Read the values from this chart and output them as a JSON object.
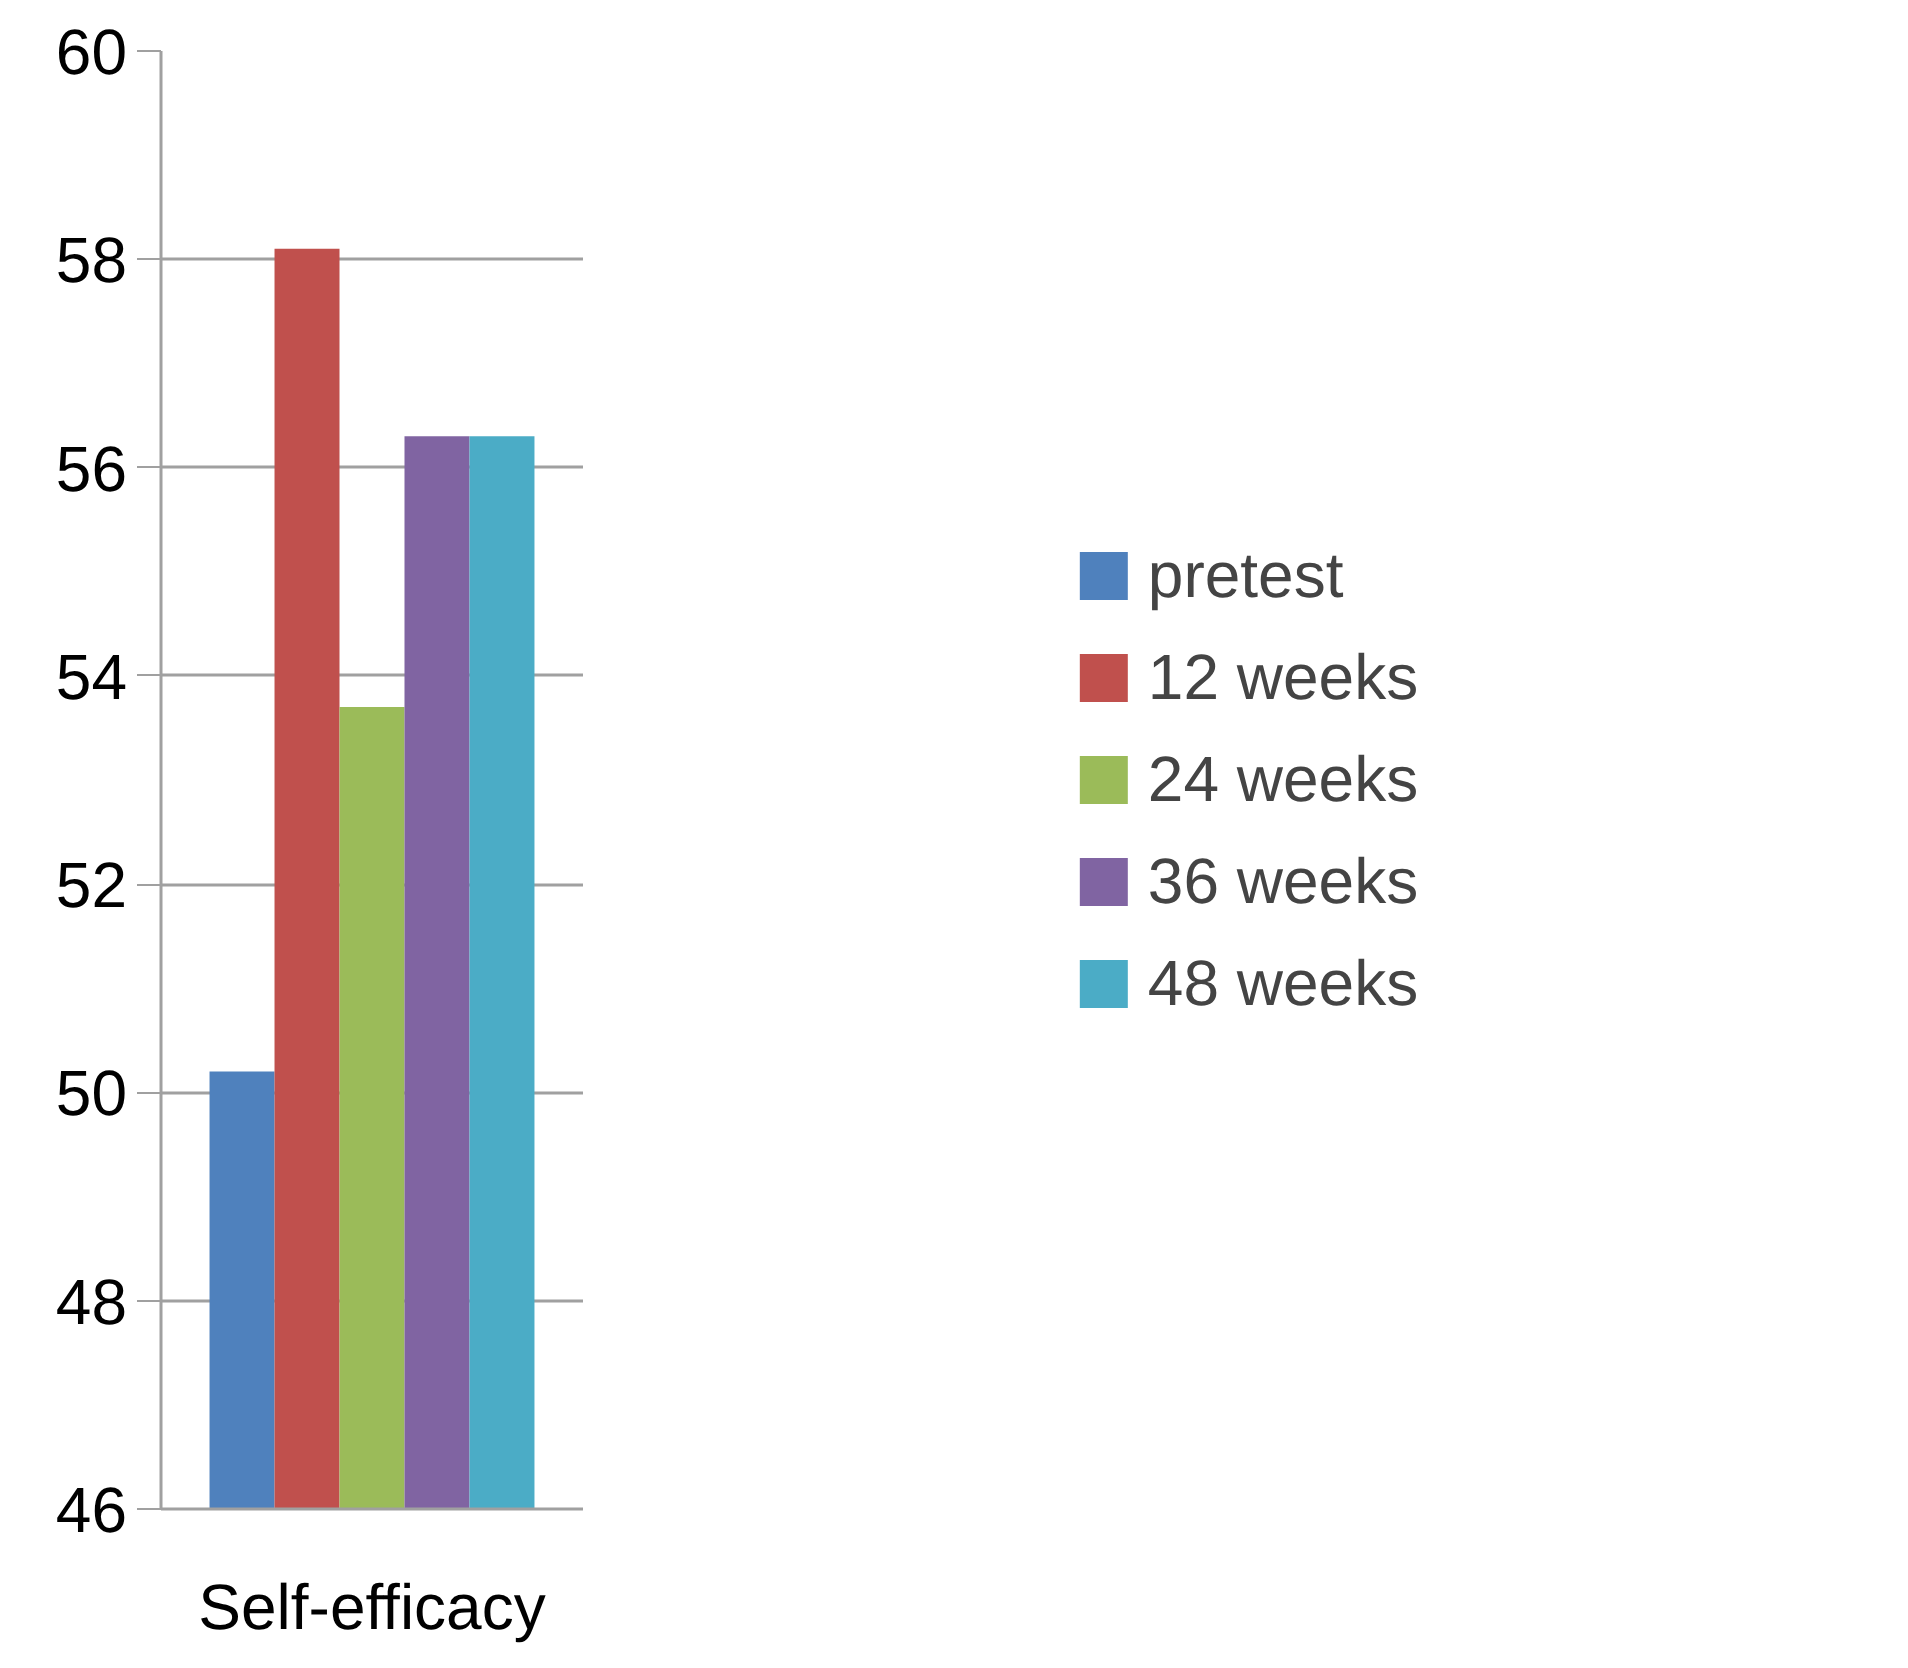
{
  "chart_data": {
    "type": "bar",
    "categories": [
      "Self-efficacy"
    ],
    "series": [
      {
        "name": "pretest",
        "color": "#4f81bd",
        "values": [
          50.2
        ]
      },
      {
        "name": "12 weeks",
        "color": "#c0504d",
        "values": [
          58.1
        ]
      },
      {
        "name": "24 weeks",
        "color": "#9bbb59",
        "values": [
          53.7
        ]
      },
      {
        "name": "36 weeks",
        "color": "#8064a2",
        "values": [
          56.3
        ]
      },
      {
        "name": "48 weeks",
        "color": "#4bacc6",
        "values": [
          56.3
        ]
      }
    ],
    "ylim": [
      46,
      60
    ],
    "yticks": [
      46,
      48,
      50,
      52,
      54,
      56,
      58,
      60
    ],
    "grid": "y",
    "legend": "right"
  }
}
